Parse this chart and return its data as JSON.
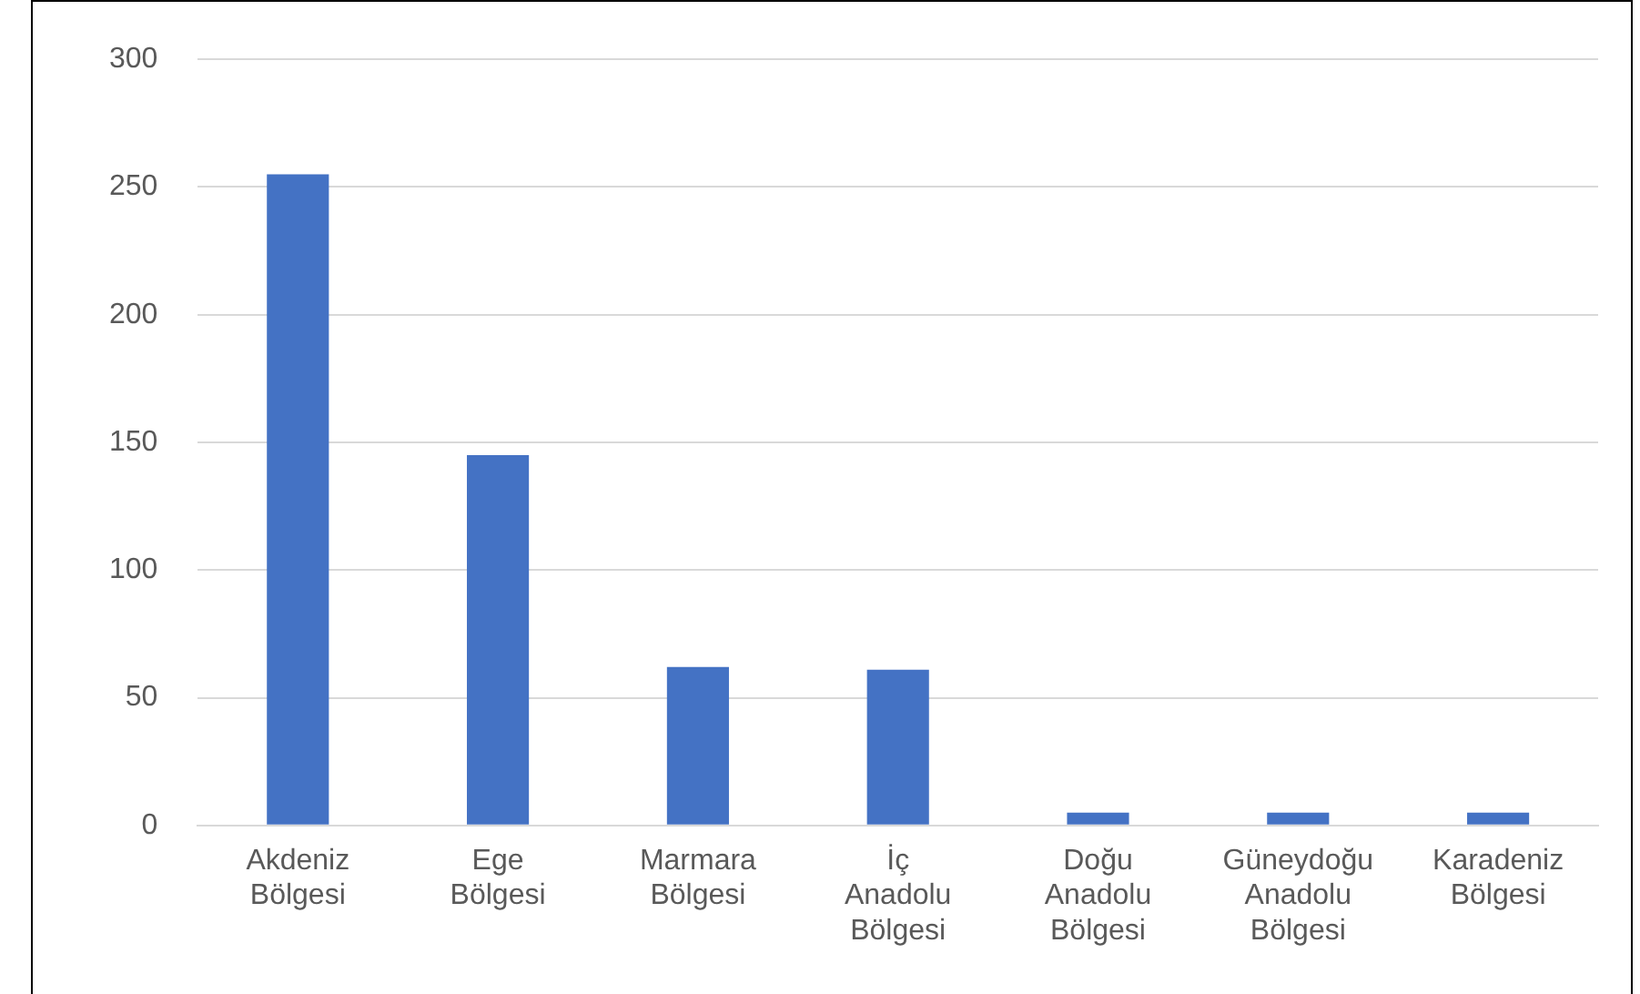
{
  "chart_data": {
    "type": "bar",
    "categories": [
      "Akdeniz Bölgesi",
      "Ege Bölgesi",
      "Marmara Bölgesi",
      "İç Anadolu Bölgesi",
      "Doğu Anadolu Bölgesi",
      "Güneydoğu Anadolu Bölgesi",
      "Karadeniz Bölgesi"
    ],
    "values": [
      255,
      145,
      62,
      61,
      5,
      5,
      5
    ],
    "color": "#4472c4",
    "ylim": [
      0,
      300
    ],
    "yticks": [
      0,
      50,
      100,
      150,
      200,
      250,
      300
    ],
    "grid": "y",
    "legend": false
  }
}
